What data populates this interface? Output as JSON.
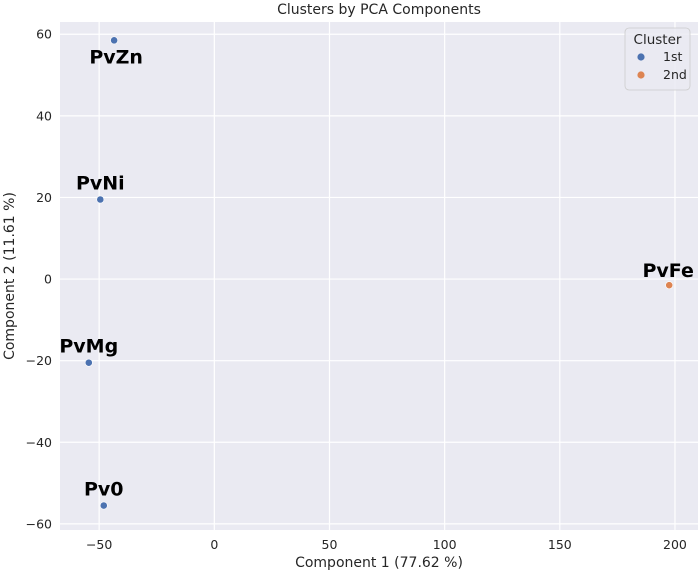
{
  "chart_data": {
    "type": "scatter",
    "title": "Clusters by PCA Components",
    "xlabel": "Component 1 (77.62 %)",
    "ylabel": "Component 2 (11.61 %)",
    "xlim": [
      -67,
      210
    ],
    "ylim": [
      -61.5,
      63
    ],
    "xticks": [
      -50,
      0,
      50,
      100,
      150,
      200
    ],
    "yticks": [
      -60,
      -40,
      -20,
      0,
      20,
      40,
      60
    ],
    "xtick_labels": [
      "−50",
      "0",
      "50",
      "100",
      "150",
      "200"
    ],
    "ytick_labels": [
      "−60",
      "−40",
      "−20",
      "0",
      "20",
      "40",
      "60"
    ],
    "grid": true,
    "legend": {
      "title": "Cluster",
      "placement": "top-right",
      "entries": [
        {
          "label": "1st",
          "color": "#4c72b0"
        },
        {
          "label": "2nd",
          "color": "#dd8452"
        }
      ]
    },
    "points": [
      {
        "label": "PvZn",
        "x": -43.5,
        "y": 58.5,
        "cluster": "1st"
      },
      {
        "label": "PvNi",
        "x": -49.5,
        "y": 19.5,
        "cluster": "1st"
      },
      {
        "label": "PvMg",
        "x": -54.5,
        "y": -20.5,
        "cluster": "1st"
      },
      {
        "label": "Pv0",
        "x": -48,
        "y": -55.5,
        "cluster": "1st"
      },
      {
        "label": "PvFe",
        "x": 197.5,
        "y": -1.5,
        "cluster": "2nd"
      }
    ]
  },
  "colors": {
    "plot_background": "#eaeaf2",
    "grid": "#ffffff",
    "cluster_1st": "#4c72b0",
    "cluster_2nd": "#dd8452"
  }
}
